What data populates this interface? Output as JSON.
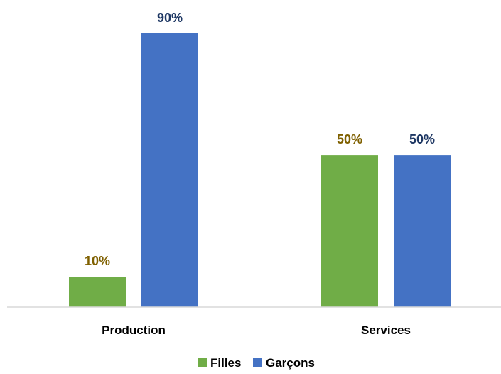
{
  "chart_data": {
    "type": "bar",
    "title": "",
    "xlabel": "",
    "ylabel": "",
    "categories": [
      "Production",
      "Services"
    ],
    "ylim": [
      0,
      100
    ],
    "grid": false,
    "legend_position": "bottom",
    "series": [
      {
        "name": "Filles",
        "color": "#70ad47",
        "label_color": "#7f6000",
        "values": [
          10,
          50
        ],
        "labels": [
          "10%",
          "50%"
        ]
      },
      {
        "name": "Garçons",
        "color": "#4472c4",
        "label_color": "#1f3864",
        "values": [
          90,
          50
        ],
        "labels": [
          "90%",
          "50%"
        ]
      }
    ]
  }
}
